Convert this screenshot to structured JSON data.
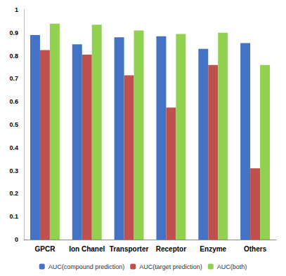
{
  "chart_data": {
    "type": "bar",
    "categories": [
      "GPCR",
      "Ion Chanel",
      "Transporter",
      "Receptor",
      "Enzyme",
      "Others"
    ],
    "series": [
      {
        "name": "AUC(compound prediction)",
        "color": "#4472c4",
        "values": [
          0.89,
          0.85,
          0.88,
          0.885,
          0.83,
          0.855
        ]
      },
      {
        "name": "AUC(target prediction)",
        "color": "#c0504d",
        "values": [
          0.825,
          0.805,
          0.715,
          0.575,
          0.76,
          0.31
        ]
      },
      {
        "name": "AUC(both)",
        "color": "#92d050",
        "values": [
          0.94,
          0.935,
          0.91,
          0.895,
          0.9,
          0.76
        ]
      }
    ],
    "ylim": [
      0,
      1
    ],
    "yticks": [
      0,
      0.1,
      0.2,
      0.3,
      0.4,
      0.5,
      0.6,
      0.7,
      0.8,
      0.9,
      1
    ],
    "grid": false,
    "legend": "bottom"
  }
}
